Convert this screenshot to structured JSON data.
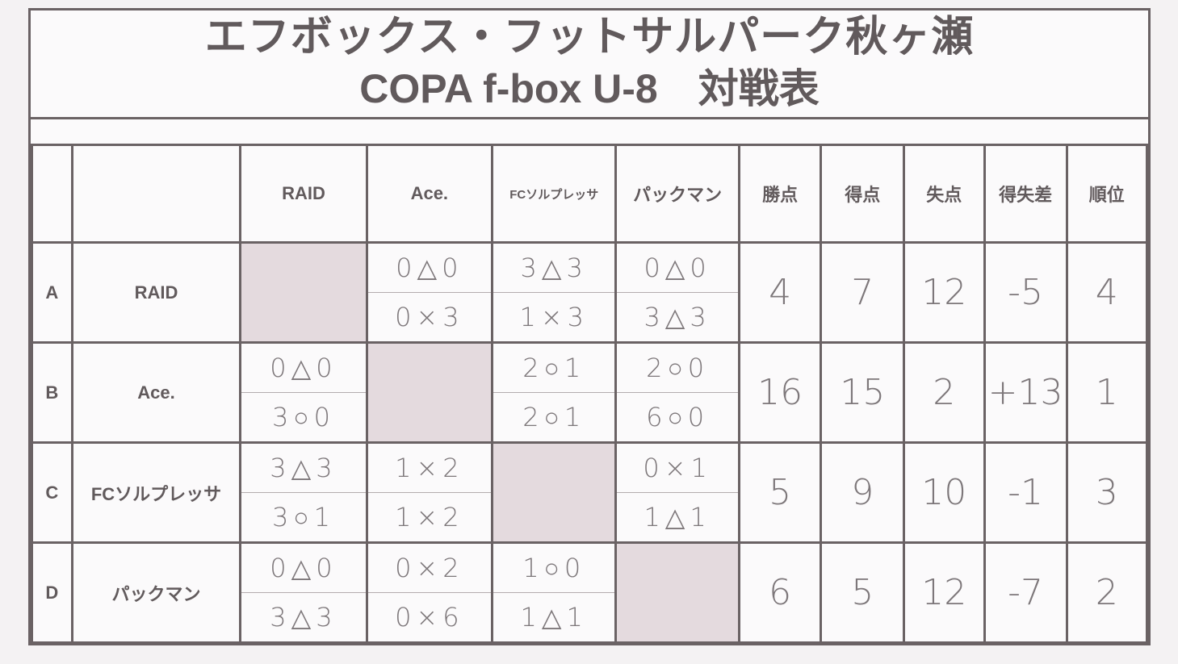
{
  "title": {
    "line1": "エフボックス・フットサルパーク秋ヶ瀬",
    "line2": "COPA f-box U-8　対戦表"
  },
  "columns": [
    "RAID",
    "Ace.",
    "FCソルプレッサ",
    "パックマン",
    "勝点",
    "得点",
    "失点",
    "得失差",
    "順位"
  ],
  "colors": {
    "diagonal_cell": "#e4dade",
    "line": "#6a6264"
  },
  "rows": [
    {
      "letter": "A",
      "team": "RAID",
      "results": [
        null,
        [
          "0△0",
          "0×3"
        ],
        [
          "3△3",
          "1×3"
        ],
        [
          "0△0",
          "3△3"
        ]
      ],
      "points": "4",
      "goals_for": "7",
      "goals_against": "12",
      "goal_diff": "-5",
      "rank": "4"
    },
    {
      "letter": "B",
      "team": "Ace.",
      "results": [
        [
          "0△0",
          "3○0"
        ],
        null,
        [
          "2○1",
          "2○1"
        ],
        [
          "2○0",
          "6○0"
        ]
      ],
      "points": "16",
      "goals_for": "15",
      "goals_against": "2",
      "goal_diff": "+13",
      "rank": "1"
    },
    {
      "letter": "C",
      "team": "FCソルプレッサ",
      "results": [
        [
          "3△3",
          "3○1"
        ],
        [
          "1×2",
          "1×2"
        ],
        null,
        [
          "0×1",
          "1△1"
        ]
      ],
      "points": "5",
      "goals_for": "9",
      "goals_against": "10",
      "goal_diff": "-1",
      "rank": "3"
    },
    {
      "letter": "D",
      "team": "パックマン",
      "results": [
        [
          "0△0",
          "3△3"
        ],
        [
          "0×2",
          "0×6"
        ],
        [
          "1○0",
          "1△1"
        ],
        null
      ],
      "points": "6",
      "goals_for": "5",
      "goals_against": "12",
      "goal_diff": "-7",
      "rank": "2"
    }
  ]
}
